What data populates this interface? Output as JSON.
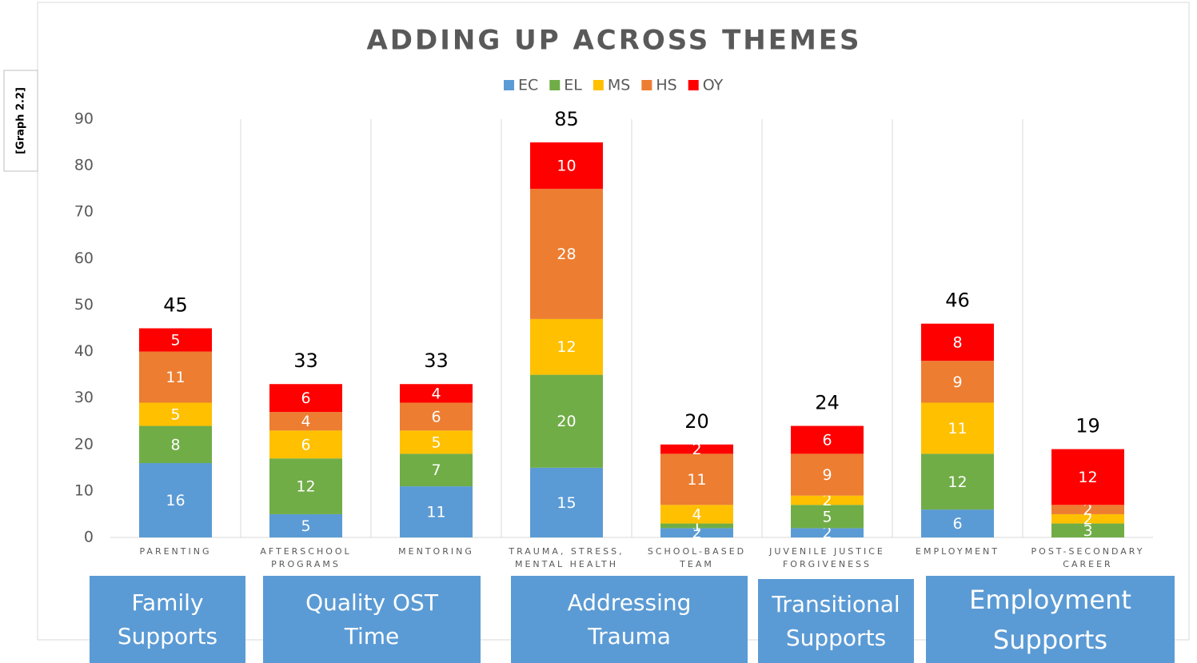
{
  "chart_data": {
    "type": "stacked_bar",
    "title": "ADDING UP ACROSS THEMES",
    "graph_label": "[Graph 2.2]",
    "categories": [
      "PARENTING",
      "AFTERSCHOOL PROGRAMS",
      "MENTORING",
      "TRAUMA, STRESS, MENTAL HEALTH",
      "SCHOOL-BASED TEAM",
      "JUVENILE JUSTICE FORGIVENESS",
      "EMPLOYMENT",
      "POST-SECONDARY CAREER"
    ],
    "series": [
      {
        "name": "EC",
        "color": "#5b9bd5",
        "values": [
          16,
          5,
          11,
          15,
          2,
          2,
          6,
          0
        ]
      },
      {
        "name": "EL",
        "color": "#70ad47",
        "values": [
          8,
          12,
          7,
          20,
          1,
          5,
          12,
          3
        ]
      },
      {
        "name": "MS",
        "color": "#ffc000",
        "values": [
          5,
          6,
          5,
          12,
          4,
          2,
          11,
          2
        ]
      },
      {
        "name": "HS",
        "color": "#ed7d31",
        "values": [
          11,
          4,
          6,
          28,
          11,
          9,
          9,
          2
        ]
      },
      {
        "name": "OY",
        "color": "#ff0000",
        "values": [
          5,
          6,
          4,
          10,
          2,
          6,
          8,
          12
        ]
      }
    ],
    "totals": [
      45,
      33,
      33,
      85,
      20,
      24,
      46,
      19
    ],
    "groups": [
      "Family Supports",
      "Quality OST Time",
      "Addressing Trauma",
      "Transitional Supports",
      "Employment Supports"
    ],
    "ylim": [
      0,
      90
    ],
    "yticks": [
      0,
      10,
      20,
      30,
      40,
      50,
      60,
      70,
      80,
      90
    ],
    "legend": "top"
  }
}
